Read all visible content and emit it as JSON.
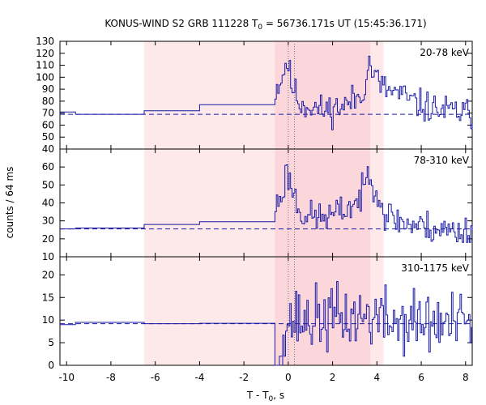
{
  "chart_data": {
    "type": "line",
    "title_prefix": "KONUS-WIND S2 GRB 111228 T",
    "title_sub": "0",
    "title_suffix": " = 56736.171s UT (15:45:36.171)",
    "xlabel_prefix": "T - T",
    "xlabel_sub": "0",
    "xlabel_suffix": ", s",
    "ylabel": "counts / 64 ms",
    "xlim": [
      -10.3,
      8.3
    ],
    "x_ticks": [
      -10,
      -8,
      -6,
      -4,
      -2,
      0,
      2,
      4,
      6,
      8
    ],
    "x_tick_labels": [
      "-10",
      "-8",
      "-6",
      "-4",
      "-2",
      "0",
      "2",
      "4",
      "6",
      "8"
    ],
    "shaded_regions": [
      {
        "range": [
          -6.5,
          4.3
        ],
        "color": "#fde8ea"
      },
      {
        "range": [
          -0.6,
          3.7
        ],
        "color": "#fbd7db"
      }
    ],
    "vlines": [
      0.0,
      0.28
    ],
    "line_color": "#1a1aa6",
    "bg_line_color": "#1a1aa6",
    "panels": [
      {
        "label": "20-78 keV",
        "ylim": [
          40,
          130
        ],
        "yticks": [
          40,
          50,
          60,
          70,
          80,
          90,
          100,
          110,
          120,
          130
        ],
        "ytick_labels": [
          "40",
          "50",
          "60",
          "70",
          "80",
          "90",
          "100",
          "110",
          "120",
          "130"
        ],
        "background": 69,
        "pre_steps": [
          [
            -10.3,
            71
          ],
          [
            -9.6,
            69
          ],
          [
            -6.5,
            72
          ],
          [
            -4.0,
            77
          ],
          [
            -0.6,
            77
          ]
        ],
        "profile": [
          [
            -0.6,
            90
          ],
          [
            -0.3,
            100
          ],
          [
            -0.1,
            115
          ],
          [
            0.1,
            95
          ],
          [
            0.5,
            78
          ],
          [
            1.0,
            76
          ],
          [
            1.5,
            72
          ],
          [
            2.0,
            74
          ],
          [
            2.5,
            76
          ],
          [
            3.0,
            82
          ],
          [
            3.3,
            85
          ],
          [
            3.6,
            112
          ],
          [
            3.9,
            100
          ],
          [
            4.3,
            90
          ],
          [
            5.0,
            86
          ],
          [
            5.5,
            80
          ],
          [
            6.0,
            76
          ],
          [
            6.5,
            74
          ],
          [
            7.0,
            72
          ],
          [
            7.5,
            71
          ],
          [
            8.0,
            70
          ],
          [
            8.3,
            70
          ]
        ],
        "noise": 6.5,
        "min_value": 55,
        "seed": 11
      },
      {
        "label": "78-310 keV",
        "ylim": [
          10,
          70
        ],
        "yticks": [
          10,
          20,
          30,
          40,
          50,
          60
        ],
        "ytick_labels": [
          "10",
          "20",
          "30",
          "40",
          "50",
          "60"
        ],
        "background": 25.5,
        "pre_steps": [
          [
            -10.3,
            25.5
          ],
          [
            -9.6,
            26
          ],
          [
            -6.5,
            28
          ],
          [
            -4.0,
            29.5
          ],
          [
            -0.6,
            29.5
          ]
        ],
        "profile": [
          [
            -0.6,
            38
          ],
          [
            -0.3,
            45
          ],
          [
            -0.1,
            58
          ],
          [
            0.1,
            50
          ],
          [
            0.5,
            35
          ],
          [
            1.0,
            32
          ],
          [
            1.5,
            32
          ],
          [
            2.0,
            33
          ],
          [
            2.5,
            36
          ],
          [
            3.0,
            40
          ],
          [
            3.3,
            44
          ],
          [
            3.6,
            58
          ],
          [
            3.9,
            50
          ],
          [
            4.3,
            34
          ],
          [
            5.0,
            30
          ],
          [
            5.5,
            28
          ],
          [
            6.0,
            27
          ],
          [
            6.5,
            26
          ],
          [
            7.0,
            25
          ],
          [
            7.5,
            24
          ],
          [
            8.0,
            24
          ],
          [
            8.3,
            24
          ]
        ],
        "noise": 4.5,
        "min_value": 18,
        "seed": 23
      },
      {
        "label": "310-1175 keV",
        "ylim": [
          0,
          24
        ],
        "yticks": [
          0,
          5,
          10,
          15,
          20
        ],
        "ytick_labels": [
          "0",
          "5",
          "10",
          "15",
          "20"
        ],
        "background": 9.2,
        "pre_steps": [
          [
            -10.3,
            9.0
          ],
          [
            -9.6,
            9.5
          ],
          [
            -6.5,
            9.2
          ],
          [
            -4.0,
            9.3
          ],
          [
            -0.6,
            9.3
          ]
        ],
        "dip": [
          [
            -0.6,
            0.0
          ],
          [
            -0.4,
            2.0
          ],
          [
            -0.25,
            0.0
          ]
        ],
        "profile": [
          [
            -0.25,
            10
          ],
          [
            0.5,
            10
          ],
          [
            1.0,
            10
          ],
          [
            2.0,
            10.5
          ],
          [
            3.0,
            10.5
          ],
          [
            3.7,
            11
          ],
          [
            4.3,
            10
          ],
          [
            5.0,
            9.5
          ],
          [
            6.0,
            9.5
          ],
          [
            7.0,
            9.0
          ],
          [
            8.0,
            9.0
          ],
          [
            8.3,
            9.0
          ]
        ],
        "noise": 3.6,
        "min_value": 2,
        "seed": 37
      }
    ]
  }
}
